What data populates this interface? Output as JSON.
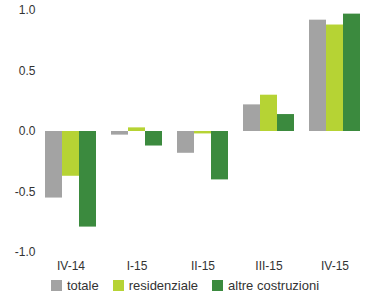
{
  "chart_data": {
    "type": "bar",
    "categories": [
      "IV-14",
      "I-15",
      "II-15",
      "III-15",
      "IV-15"
    ],
    "series": [
      {
        "name": "totale",
        "color": "#a3a3a3",
        "values": [
          -0.55,
          -0.03,
          -0.18,
          0.22,
          0.92
        ]
      },
      {
        "name": "residenziale",
        "color": "#b6d334",
        "values": [
          -0.37,
          0.03,
          -0.02,
          0.3,
          0.88
        ]
      },
      {
        "name": "altre costruzioni",
        "color": "#3b8a3e",
        "values": [
          -0.79,
          -0.12,
          -0.4,
          0.14,
          0.97
        ]
      }
    ],
    "ylim": [
      -1.0,
      1.0
    ],
    "yticks": [
      {
        "value": -1.0,
        "label": "-1.0"
      },
      {
        "value": -0.5,
        "label": "-0.5"
      },
      {
        "value": 0.0,
        "label": "0.0"
      },
      {
        "value": 0.5,
        "label": "0.5"
      },
      {
        "value": 1.0,
        "label": "1.0"
      }
    ],
    "grid": false,
    "legend": "bottom"
  }
}
